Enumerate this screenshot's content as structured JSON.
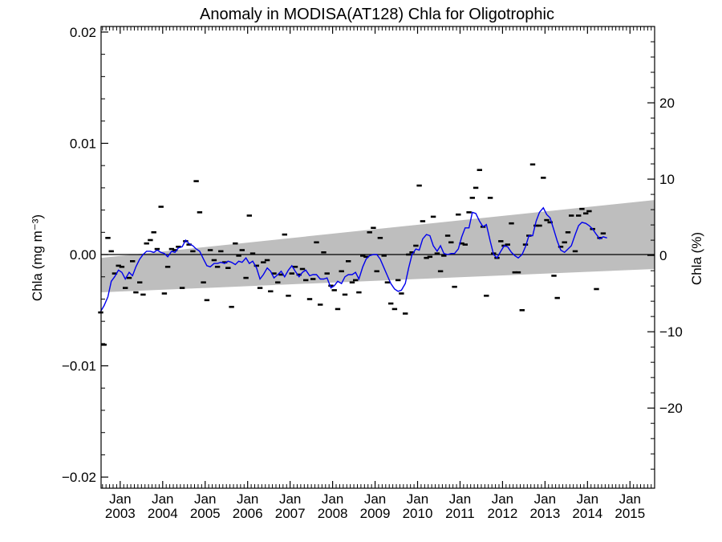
{
  "chart_data": {
    "type": "scatter",
    "title": "Anomaly in MODISA(AT128) Chla for Oligotrophic",
    "ylabel_left": "Chla (mg m⁻³)",
    "ylabel_right": "Chla (%)",
    "y_left_ticks": [
      "0.02",
      "0.01",
      "0.00",
      "−0.01",
      "−0.02"
    ],
    "y_left_range": [
      -0.021,
      0.0205
    ],
    "y_right_ticks": [
      "20",
      "10",
      "0",
      "−10",
      "−20"
    ],
    "y_right_range": [
      -30.5,
      30.0
    ],
    "x_range": [
      2002.55,
      2015.58
    ],
    "x_ticks": [
      {
        "month": "Jan",
        "year": "2003",
        "x": 2003.0
      },
      {
        "month": "Jan",
        "year": "2004",
        "x": 2004.0
      },
      {
        "month": "Jan",
        "year": "2005",
        "x": 2005.0
      },
      {
        "month": "Jan",
        "year": "2006",
        "x": 2006.0
      },
      {
        "month": "Jan",
        "year": "2007",
        "x": 2007.0
      },
      {
        "month": "Jan",
        "year": "2008",
        "x": 2008.0
      },
      {
        "month": "Jan",
        "year": "2009",
        "x": 2009.0
      },
      {
        "month": "Jan",
        "year": "2010",
        "x": 2010.0
      },
      {
        "month": "Jan",
        "year": "2011",
        "x": 2011.0
      },
      {
        "month": "Jan",
        "year": "2012",
        "x": 2012.0
      },
      {
        "month": "Jan",
        "year": "2013",
        "x": 2013.0
      },
      {
        "month": "Jan",
        "year": "2014",
        "x": 2014.0
      },
      {
        "month": "Jan",
        "year": "2015",
        "x": 2015.0
      }
    ],
    "trend_band": {
      "lower": [
        [
          2002.55,
          -0.0034
        ],
        [
          2015.58,
          -0.0013
        ]
      ],
      "upper": [
        [
          2002.55,
          -0.0003
        ],
        [
          2015.58,
          0.0049
        ]
      ]
    },
    "monthly_anomalies": [
      [
        2002.54,
        -0.0052
      ],
      [
        2002.62,
        -0.0081
      ],
      [
        2002.71,
        0.0015
      ],
      [
        2002.79,
        0.0003
      ],
      [
        2002.87,
        -0.0017
      ],
      [
        2002.96,
        -0.001
      ],
      [
        2003.04,
        -0.0011
      ],
      [
        2003.12,
        -0.003
      ],
      [
        2003.21,
        -0.0021
      ],
      [
        2003.29,
        -0.0006
      ],
      [
        2003.37,
        -0.0034
      ],
      [
        2003.46,
        -0.0025
      ],
      [
        2003.54,
        -0.0036
      ],
      [
        2003.62,
        0.001
      ],
      [
        2003.71,
        0.0013
      ],
      [
        2003.79,
        0.002
      ],
      [
        2003.87,
        0.0005
      ],
      [
        2003.96,
        0.0043
      ],
      [
        2004.04,
        -0.0035
      ],
      [
        2004.12,
        -0.0011
      ],
      [
        2004.21,
        0.0005
      ],
      [
        2004.29,
        0.0004
      ],
      [
        2004.37,
        0.0007
      ],
      [
        2004.46,
        -0.003
      ],
      [
        2004.54,
        0.0012
      ],
      [
        2004.62,
        0.0009
      ],
      [
        2004.71,
        0.0003
      ],
      [
        2004.79,
        0.0066
      ],
      [
        2004.87,
        0.0038
      ],
      [
        2004.96,
        -0.0025
      ],
      [
        2005.04,
        -0.0041
      ],
      [
        2005.12,
        0.0004
      ],
      [
        2005.21,
        -0.0005
      ],
      [
        2005.29,
        -0.0011
      ],
      [
        2005.37,
        0.0003
      ],
      [
        2005.46,
        -0.0007
      ],
      [
        2005.54,
        -0.0012
      ],
      [
        2005.62,
        -0.0047
      ],
      [
        2005.71,
        0.001
      ],
      [
        2005.79,
        -0.0001
      ],
      [
        2005.87,
        0.0004
      ],
      [
        2005.96,
        -0.0021
      ],
      [
        2006.04,
        0.0035
      ],
      [
        2006.12,
        0.0001
      ],
      [
        2006.21,
        -0.001
      ],
      [
        2006.29,
        -0.003
      ],
      [
        2006.37,
        -0.0007
      ],
      [
        2006.46,
        -0.0005
      ],
      [
        2006.54,
        -0.0033
      ],
      [
        2006.62,
        -0.0017
      ],
      [
        2006.71,
        -0.0025
      ],
      [
        2006.79,
        -0.0018
      ],
      [
        2006.87,
        0.0018
      ],
      [
        2006.96,
        -0.0037
      ],
      [
        2007.04,
        -0.0017
      ],
      [
        2007.12,
        -0.0011
      ],
      [
        2007.21,
        -0.0018
      ],
      [
        2007.29,
        -0.0013
      ],
      [
        2007.37,
        -0.0023
      ],
      [
        2007.46,
        -0.004
      ],
      [
        2007.54,
        -0.0022
      ],
      [
        2007.62,
        0.0011
      ],
      [
        2007.71,
        -0.0045
      ],
      [
        2007.79,
        0.0002
      ],
      [
        2007.87,
        -0.0017
      ],
      [
        2007.96,
        -0.0028
      ],
      [
        2008.04,
        -0.0032
      ],
      [
        2008.12,
        -0.0049
      ],
      [
        2008.21,
        -0.0015
      ],
      [
        2008.29,
        -0.0036
      ],
      [
        2008.37,
        -0.0006
      ],
      [
        2008.46,
        -0.0025
      ],
      [
        2008.54,
        -0.0023
      ],
      [
        2008.62,
        -0.0034
      ],
      [
        2008.71,
        -0.0001
      ],
      [
        2008.79,
        -0.0002
      ],
      [
        2008.87,
        0.002
      ],
      [
        2008.96,
        0.0024
      ],
      [
        2009.04,
        -0.0015
      ],
      [
        2009.12,
        0.0015
      ],
      [
        2009.21,
        -0.0001
      ],
      [
        2009.29,
        -0.0025
      ],
      [
        2009.37,
        -0.0044
      ],
      [
        2009.46,
        -0.0049
      ],
      [
        2009.54,
        -0.0023
      ],
      [
        2009.62,
        -0.0035
      ],
      [
        2009.71,
        -0.0053
      ],
      [
        2009.79,
        0.0
      ],
      [
        2009.87,
        0.0002
      ],
      [
        2009.96,
        0.0008
      ],
      [
        2010.04,
        0.0062
      ],
      [
        2010.12,
        0.003
      ],
      [
        2010.21,
        -0.0003
      ],
      [
        2010.29,
        -0.0002
      ],
      [
        2010.37,
        0.0034
      ],
      [
        2010.46,
        0.0001
      ],
      [
        2010.54,
        -0.0015
      ],
      [
        2010.62,
        -0.0001
      ],
      [
        2010.71,
        0.0017
      ],
      [
        2010.79,
        0.0011
      ],
      [
        2010.87,
        -0.0029
      ],
      [
        2010.96,
        0.0036
      ],
      [
        2011.04,
        0.001
      ],
      [
        2011.12,
        0.0009
      ],
      [
        2011.21,
        0.0038
      ],
      [
        2011.29,
        0.0051
      ],
      [
        2011.37,
        0.006
      ],
      [
        2011.46,
        0.0076
      ],
      [
        2011.54,
        0.0025
      ],
      [
        2011.62,
        -0.0037
      ],
      [
        2011.71,
        0.0051
      ],
      [
        2011.79,
        0.0001
      ],
      [
        2011.87,
        -0.0003
      ],
      [
        2011.96,
        0.0012
      ],
      [
        2012.04,
        0.0008
      ],
      [
        2012.12,
        0.0009
      ],
      [
        2012.21,
        0.0028
      ],
      [
        2012.29,
        -0.0016
      ],
      [
        2012.37,
        -0.0016
      ],
      [
        2012.46,
        -0.005
      ],
      [
        2012.54,
        0.0009
      ],
      [
        2012.62,
        0.0017
      ],
      [
        2012.71,
        0.0081
      ],
      [
        2012.79,
        0.0026
      ],
      [
        2012.87,
        0.0026
      ],
      [
        2012.96,
        0.0069
      ],
      [
        2013.04,
        0.0031
      ],
      [
        2013.12,
        0.0029
      ],
      [
        2013.21,
        -0.0019
      ],
      [
        2013.29,
        -0.0039
      ],
      [
        2013.37,
        0.0007
      ],
      [
        2013.46,
        0.0011
      ],
      [
        2013.54,
        0.002
      ],
      [
        2013.62,
        0.0035
      ],
      [
        2013.71,
        0.0003
      ],
      [
        2013.79,
        0.0035
      ],
      [
        2013.87,
        0.0041
      ],
      [
        2013.96,
        0.0037
      ],
      [
        2014.04,
        0.0039
      ],
      [
        2014.12,
        0.0023
      ],
      [
        2014.21,
        -0.0031
      ],
      [
        2014.29,
        0.0015
      ],
      [
        2014.37,
        0.0019
      ]
    ],
    "running_mean": [
      [
        2002.54,
        -0.0051
      ],
      [
        2002.62,
        -0.0046
      ],
      [
        2002.71,
        -0.0038
      ],
      [
        2002.79,
        -0.0024
      ],
      [
        2002.87,
        -0.002
      ],
      [
        2002.96,
        -0.0014
      ],
      [
        2003.04,
        -0.0016
      ],
      [
        2003.12,
        -0.0022
      ],
      [
        2003.21,
        -0.0016
      ],
      [
        2003.29,
        -0.0019
      ],
      [
        2003.37,
        -0.0011
      ],
      [
        2003.46,
        -0.0004
      ],
      [
        2003.54,
        0.0
      ],
      [
        2003.62,
        0.0003
      ],
      [
        2003.71,
        0.0003
      ],
      [
        2003.79,
        0.0002
      ],
      [
        2003.87,
        0.0004
      ],
      [
        2003.96,
        0.0002
      ],
      [
        2004.04,
        0.0001
      ],
      [
        2004.12,
        -0.0002
      ],
      [
        2004.21,
        0.0003
      ],
      [
        2004.29,
        0.0002
      ],
      [
        2004.37,
        0.0006
      ],
      [
        2004.46,
        0.0007
      ],
      [
        2004.54,
        0.0013
      ],
      [
        2004.62,
        0.001
      ],
      [
        2004.71,
        0.0008
      ],
      [
        2004.79,
        0.0005
      ],
      [
        2004.87,
        0.0003
      ],
      [
        2004.96,
        -0.0004
      ],
      [
        2005.04,
        -0.001
      ],
      [
        2005.12,
        -0.0011
      ],
      [
        2005.21,
        -0.0008
      ],
      [
        2005.29,
        -0.0008
      ],
      [
        2005.37,
        -0.0007
      ],
      [
        2005.46,
        -0.0008
      ],
      [
        2005.54,
        -0.0006
      ],
      [
        2005.62,
        -0.0007
      ],
      [
        2005.71,
        -0.0009
      ],
      [
        2005.79,
        -0.0006
      ],
      [
        2005.87,
        -0.0007
      ],
      [
        2005.96,
        -0.0003
      ],
      [
        2006.04,
        -0.0008
      ],
      [
        2006.12,
        -0.0006
      ],
      [
        2006.21,
        -0.0012
      ],
      [
        2006.29,
        -0.0022
      ],
      [
        2006.37,
        -0.0018
      ],
      [
        2006.46,
        -0.0012
      ],
      [
        2006.54,
        -0.0015
      ],
      [
        2006.62,
        -0.0021
      ],
      [
        2006.71,
        -0.0018
      ],
      [
        2006.79,
        -0.0015
      ],
      [
        2006.87,
        -0.002
      ],
      [
        2006.96,
        -0.0014
      ],
      [
        2007.04,
        -0.001
      ],
      [
        2007.12,
        -0.0015
      ],
      [
        2007.21,
        -0.002
      ],
      [
        2007.29,
        -0.0016
      ],
      [
        2007.37,
        -0.0014
      ],
      [
        2007.46,
        -0.0019
      ],
      [
        2007.54,
        -0.0018
      ],
      [
        2007.62,
        -0.0018
      ],
      [
        2007.71,
        -0.0022
      ],
      [
        2007.79,
        -0.0022
      ],
      [
        2007.87,
        -0.0021
      ],
      [
        2007.96,
        -0.003
      ],
      [
        2008.04,
        -0.0028
      ],
      [
        2008.12,
        -0.0024
      ],
      [
        2008.21,
        -0.0026
      ],
      [
        2008.29,
        -0.002
      ],
      [
        2008.37,
        -0.0018
      ],
      [
        2008.46,
        -0.0018
      ],
      [
        2008.54,
        -0.0016
      ],
      [
        2008.62,
        -0.0022
      ],
      [
        2008.71,
        -0.0011
      ],
      [
        2008.79,
        -0.0004
      ],
      [
        2008.87,
        -0.0001
      ],
      [
        2008.96,
        0.0
      ],
      [
        2009.04,
        0.0
      ],
      [
        2009.12,
        -0.0004
      ],
      [
        2009.21,
        -0.0012
      ],
      [
        2009.29,
        -0.0019
      ],
      [
        2009.37,
        -0.0026
      ],
      [
        2009.46,
        -0.0031
      ],
      [
        2009.54,
        -0.0033
      ],
      [
        2009.62,
        -0.0032
      ],
      [
        2009.71,
        -0.0026
      ],
      [
        2009.79,
        -0.0012
      ],
      [
        2009.87,
        0.0
      ],
      [
        2009.96,
        0.0005
      ],
      [
        2010.04,
        0.0004
      ],
      [
        2010.12,
        0.0014
      ],
      [
        2010.21,
        0.0018
      ],
      [
        2010.29,
        0.0017
      ],
      [
        2010.37,
        0.0008
      ],
      [
        2010.46,
        0.0003
      ],
      [
        2010.54,
        0.0008
      ],
      [
        2010.62,
        0.0001
      ],
      [
        2010.71,
        0.0
      ],
      [
        2010.79,
        0.0001
      ],
      [
        2010.87,
        0.0001
      ],
      [
        2010.96,
        0.0005
      ],
      [
        2011.04,
        0.0016
      ],
      [
        2011.12,
        0.0024
      ],
      [
        2011.21,
        0.0024
      ],
      [
        2011.29,
        0.0038
      ],
      [
        2011.37,
        0.0037
      ],
      [
        2011.46,
        0.003
      ],
      [
        2011.54,
        0.0025
      ],
      [
        2011.62,
        0.0027
      ],
      [
        2011.71,
        0.0012
      ],
      [
        2011.79,
        0.0
      ],
      [
        2011.87,
        -0.0003
      ],
      [
        2011.96,
        0.0003
      ],
      [
        2012.04,
        0.0008
      ],
      [
        2012.12,
        0.0007
      ],
      [
        2012.21,
        0.0002
      ],
      [
        2012.29,
        -0.0001
      ],
      [
        2012.37,
        -0.0003
      ],
      [
        2012.46,
        0.0
      ],
      [
        2012.54,
        0.0007
      ],
      [
        2012.62,
        0.0017
      ],
      [
        2012.71,
        0.0017
      ],
      [
        2012.79,
        0.003
      ],
      [
        2012.87,
        0.0038
      ],
      [
        2012.96,
        0.0042
      ],
      [
        2013.04,
        0.0036
      ],
      [
        2013.12,
        0.0033
      ],
      [
        2013.21,
        0.0022
      ],
      [
        2013.29,
        0.0012
      ],
      [
        2013.37,
        0.0004
      ],
      [
        2013.46,
        0.0002
      ],
      [
        2013.54,
        0.0005
      ],
      [
        2013.62,
        0.0008
      ],
      [
        2013.71,
        0.0018
      ],
      [
        2013.79,
        0.0026
      ],
      [
        2013.87,
        0.0029
      ],
      [
        2013.96,
        0.0028
      ],
      [
        2014.04,
        0.0026
      ],
      [
        2014.12,
        0.0023
      ],
      [
        2014.21,
        0.0018
      ],
      [
        2014.29,
        0.0014
      ],
      [
        2014.37,
        0.0016
      ],
      [
        2014.46,
        0.0015
      ]
    ],
    "colors": {
      "band": "#bebebe",
      "running_mean": "#0000ee",
      "points": "#000000",
      "zero_line": "#000000"
    },
    "grid": false,
    "legend": "none"
  }
}
